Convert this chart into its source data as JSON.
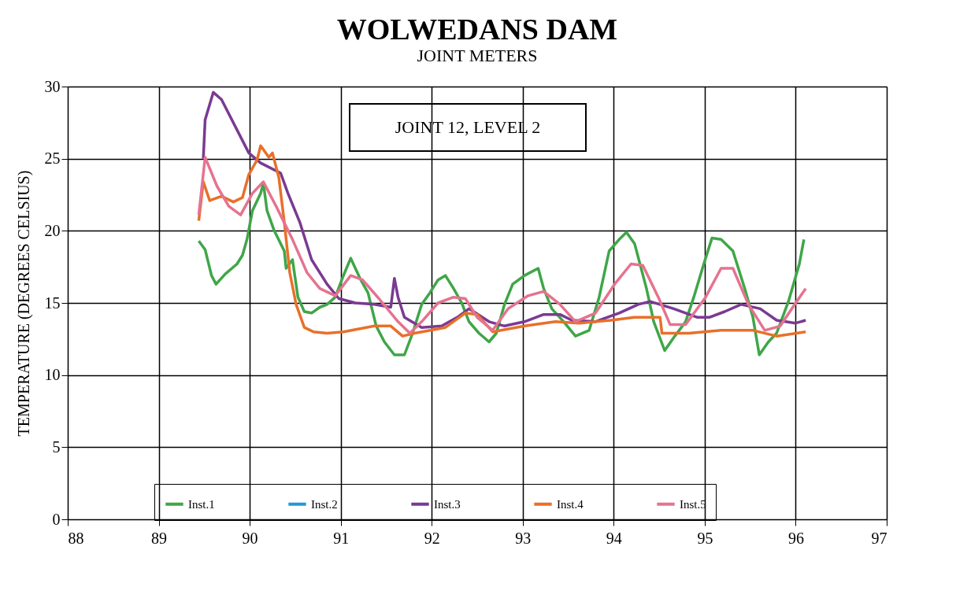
{
  "chart_data": {
    "type": "line",
    "title": "WOLWEDANS DAM",
    "subtitle": "JOINT METERS",
    "ylabel": "TEMPERATURE (DEGREES CELSIUS)",
    "annotations": [
      "JOINT 12, LEVEL 2"
    ],
    "xlim": [
      88,
      97
    ],
    "xticks": [
      88,
      89,
      90,
      91,
      92,
      93,
      94,
      95,
      96,
      97
    ],
    "ylim": [
      0,
      30
    ],
    "yticks": [
      0,
      5,
      10,
      15,
      20,
      25,
      30
    ],
    "grid": true,
    "legend": "bottom",
    "marker": "none",
    "line_style": "solid",
    "series": [
      {
        "name": "Inst.1",
        "color": "#3fa648",
        "x": [
          89.44,
          89.51,
          89.58,
          89.63,
          89.73,
          89.86,
          89.92,
          89.97,
          90.03,
          90.12,
          90.15,
          90.19,
          90.27,
          90.38,
          90.4,
          90.47,
          90.53,
          90.6,
          90.68,
          90.77,
          90.85,
          90.94,
          91.03,
          91.11,
          91.22,
          91.3,
          91.39,
          91.48,
          91.59,
          91.7,
          91.79,
          91.89,
          91.98,
          92.07,
          92.15,
          92.24,
          92.33,
          92.41,
          92.52,
          92.63,
          92.71,
          92.8,
          92.89,
          93.02,
          93.17,
          93.23,
          93.32,
          93.45,
          93.58,
          93.73,
          93.84,
          93.95,
          94.06,
          94.14,
          94.23,
          94.36,
          94.44,
          94.56,
          94.66,
          94.79,
          94.88,
          94.99,
          95.08,
          95.18,
          95.31,
          95.44,
          95.53,
          95.6,
          95.7,
          95.79,
          95.92,
          96.04,
          96.09
        ],
        "values": [
          19.3,
          18.7,
          16.9,
          16.3,
          17.0,
          17.7,
          18.3,
          19.4,
          21.4,
          22.6,
          23.3,
          21.4,
          20.0,
          18.6,
          17.4,
          18.0,
          15.4,
          14.4,
          14.3,
          14.7,
          14.9,
          15.4,
          16.9,
          18.1,
          16.6,
          15.7,
          13.4,
          12.3,
          11.4,
          11.4,
          12.9,
          14.9,
          15.7,
          16.6,
          16.9,
          16.0,
          15.0,
          13.7,
          12.9,
          12.3,
          12.9,
          14.9,
          16.3,
          16.9,
          17.4,
          16.0,
          14.6,
          13.7,
          12.7,
          13.1,
          15.4,
          18.6,
          19.4,
          19.9,
          19.1,
          16.0,
          13.7,
          11.7,
          12.6,
          13.7,
          15.4,
          17.7,
          19.5,
          19.4,
          18.6,
          16.0,
          14.0,
          11.4,
          12.3,
          12.9,
          15.1,
          17.7,
          19.4
        ]
      },
      {
        "name": "Inst.2",
        "color": "#1f9ad6"
      },
      {
        "name": "Inst.3",
        "color": "#7a3a92",
        "x": [
          89.49,
          89.51,
          89.6,
          89.69,
          89.99,
          90.12,
          90.34,
          90.42,
          90.55,
          90.68,
          90.85,
          90.98,
          91.16,
          91.37,
          91.55,
          91.59,
          91.63,
          91.7,
          91.89,
          92.11,
          92.28,
          92.41,
          92.63,
          92.8,
          93.02,
          93.23,
          93.41,
          93.54,
          93.8,
          94.06,
          94.27,
          94.4,
          94.66,
          94.92,
          95.05,
          95.22,
          95.4,
          95.61,
          95.79,
          96.0,
          96.11
        ],
        "values": [
          25.0,
          27.7,
          29.6,
          29.1,
          25.4,
          24.7,
          24.0,
          22.6,
          20.6,
          18.0,
          16.3,
          15.3,
          15.0,
          14.9,
          14.7,
          16.7,
          15.4,
          14.0,
          13.3,
          13.4,
          14.0,
          14.6,
          13.7,
          13.4,
          13.7,
          14.2,
          14.2,
          13.8,
          13.7,
          14.3,
          14.9,
          15.1,
          14.6,
          14.0,
          14.0,
          14.4,
          14.9,
          14.6,
          13.8,
          13.6,
          13.8
        ]
      },
      {
        "name": "Inst.4",
        "color": "#e8702a",
        "x": [
          89.44,
          89.49,
          89.56,
          89.69,
          89.82,
          89.92,
          89.99,
          90.08,
          90.12,
          90.21,
          90.25,
          90.32,
          90.38,
          90.44,
          90.51,
          90.6,
          90.7,
          90.85,
          91.03,
          91.37,
          91.55,
          91.68,
          91.81,
          92.15,
          92.37,
          92.5,
          92.67,
          93.02,
          93.36,
          93.62,
          93.97,
          94.23,
          94.51,
          94.53,
          94.83,
          95.18,
          95.53,
          95.79,
          96.11
        ],
        "values": [
          20.7,
          23.4,
          22.1,
          22.4,
          22.0,
          22.3,
          23.9,
          24.9,
          25.9,
          25.1,
          25.4,
          23.7,
          20.6,
          17.1,
          14.9,
          13.3,
          13.0,
          12.9,
          13.0,
          13.4,
          13.4,
          12.7,
          12.9,
          13.3,
          14.3,
          14.2,
          13.0,
          13.4,
          13.7,
          13.6,
          13.8,
          14.0,
          14.0,
          12.9,
          12.9,
          13.1,
          13.1,
          12.7,
          13.0
        ]
      },
      {
        "name": "Inst.5",
        "color": "#e57390",
        "x": [
          89.44,
          89.51,
          89.64,
          89.77,
          89.9,
          90.03,
          90.15,
          90.29,
          90.47,
          90.63,
          90.77,
          90.94,
          91.11,
          91.24,
          91.42,
          91.63,
          91.76,
          91.89,
          92.07,
          92.24,
          92.37,
          92.5,
          92.67,
          92.84,
          93.06,
          93.23,
          93.41,
          93.58,
          93.8,
          94.01,
          94.19,
          94.32,
          94.49,
          94.62,
          94.79,
          95.01,
          95.18,
          95.31,
          95.48,
          95.66,
          95.83,
          96.0,
          96.11
        ],
        "values": [
          21.1,
          25.1,
          23.1,
          21.7,
          21.1,
          22.6,
          23.4,
          21.7,
          19.4,
          17.1,
          16.0,
          15.5,
          16.9,
          16.6,
          15.3,
          13.7,
          12.9,
          13.7,
          15.0,
          15.4,
          15.3,
          14.0,
          13.1,
          14.6,
          15.5,
          15.8,
          14.9,
          13.7,
          14.3,
          16.3,
          17.7,
          17.6,
          15.4,
          13.5,
          13.5,
          15.4,
          17.4,
          17.4,
          14.9,
          13.1,
          13.4,
          15.0,
          16.0
        ]
      }
    ]
  }
}
